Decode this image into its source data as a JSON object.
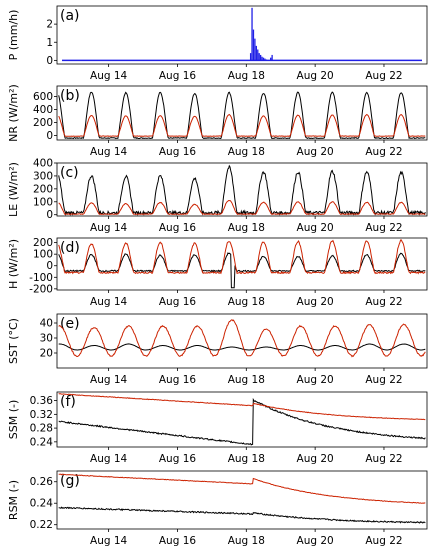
{
  "figure": {
    "x_tick_labels": [
      "Aug 14",
      "Aug 16",
      "Aug 18",
      "Aug 20",
      "Aug 22"
    ],
    "colors": {
      "black": "#000000",
      "red": "#cc2200",
      "blue": "#1f1fe6"
    }
  },
  "chart_data": [
    {
      "panel": "(a)",
      "type": "bar",
      "ylabel": "P (mm/h)",
      "xlim": [
        "2016-08-12T12:00",
        "2016-08-23T06:00"
      ],
      "ylim": [
        -0.2,
        3
      ],
      "yticks": [
        {
          "v": 0,
          "label": "0"
        },
        {
          "v": 1,
          "label": "1"
        },
        {
          "v": 2,
          "label": "2"
        }
      ],
      "series": [
        {
          "color": "blue",
          "x": [
            "2016-08-18T03:00",
            "2016-08-18T04:00",
            "2016-08-18T05:00",
            "2016-08-18T06:00",
            "2016-08-18T07:00",
            "2016-08-18T08:00",
            "2016-08-18T09:00",
            "2016-08-18T10:00",
            "2016-08-18T11:00",
            "2016-08-18T12:00",
            "2016-08-18T13:00",
            "2016-08-18T14:00",
            "2016-08-18T17:00",
            "2016-08-18T18:00"
          ],
          "y": [
            0.4,
            2.9,
            1.7,
            1.2,
            0.8,
            0.6,
            0.4,
            0.3,
            0.2,
            0.15,
            0.1,
            0.05,
            0.15,
            0.3
          ]
        }
      ],
      "baseline": 0
    },
    {
      "panel": "(b)",
      "type": "line",
      "ylabel": "NR (W/m²)",
      "model": "diurnal",
      "ylim": [
        -70,
        760
      ],
      "yticks": [
        {
          "v": 0,
          "label": "0"
        },
        {
          "v": 200,
          "label": "200"
        },
        {
          "v": 400,
          "label": "400"
        },
        {
          "v": 600,
          "label": "600"
        }
      ],
      "series": [
        {
          "color": "black",
          "peaks": [
            670,
            665,
            655,
            660,
            645,
            660,
            650,
            660,
            665,
            660,
            660
          ],
          "base": -40,
          "noise": 0.02
        },
        {
          "color": "red",
          "peaks": [
            320,
            305,
            300,
            305,
            295,
            320,
            300,
            310,
            315,
            320,
            320
          ],
          "base": -10,
          "noise": 0.02
        }
      ]
    },
    {
      "panel": "(c)",
      "type": "line",
      "ylabel": "LE (W/m²)",
      "model": "diurnal",
      "ylim": [
        -10,
        400
      ],
      "yticks": [
        {
          "v": 0,
          "label": "0"
        },
        {
          "v": 100,
          "label": "100"
        },
        {
          "v": 200,
          "label": "200"
        },
        {
          "v": 300,
          "label": "300"
        },
        {
          "v": 400,
          "label": "400"
        }
      ],
      "series": [
        {
          "color": "black",
          "peaks": [
            320,
            300,
            295,
            300,
            280,
            365,
            330,
            330,
            335,
            330,
            325
          ],
          "base": 15,
          "noise": 0.08
        },
        {
          "color": "red",
          "peaks": [
            100,
            90,
            85,
            95,
            80,
            110,
            95,
            100,
            100,
            95,
            95
          ],
          "base": 5,
          "noise": 0.06
        }
      ]
    },
    {
      "panel": "(d)",
      "type": "line",
      "ylabel": "H (W/m²)",
      "model": "diurnal",
      "ylim": [
        -210,
        240
      ],
      "yticks": [
        {
          "v": -200,
          "label": "-200"
        },
        {
          "v": -100,
          "label": "-100"
        },
        {
          "v": 0,
          "label": "0"
        },
        {
          "v": 100,
          "label": "100"
        },
        {
          "v": 200,
          "label": "200"
        }
      ],
      "series": [
        {
          "color": "black",
          "peaks": [
            110,
            95,
            100,
            90,
            95,
            110,
            80,
            80,
            85,
            95,
            105
          ],
          "base": -45,
          "noise": 0.08,
          "dip": {
            "day": 5.1,
            "value": -190
          }
        },
        {
          "color": "red",
          "peaks": [
            200,
            190,
            195,
            200,
            195,
            215,
            205,
            210,
            215,
            215,
            220
          ],
          "base": -60,
          "noise": 0.05
        }
      ]
    },
    {
      "panel": "(e)",
      "type": "line",
      "ylabel": "SST (°C)",
      "model": "diurnal_temp",
      "ylim": [
        10,
        46
      ],
      "yticks": [
        {
          "v": 20,
          "label": "20"
        },
        {
          "v": 30,
          "label": "30"
        },
        {
          "v": 40,
          "label": "40"
        }
      ],
      "series": [
        {
          "color": "black",
          "peaks": [
            26,
            25,
            26,
            25,
            25,
            24,
            24,
            25,
            25,
            26,
            26
          ],
          "base": 22,
          "noise": 0.02
        },
        {
          "color": "red",
          "peaks": [
            38,
            37,
            38,
            38,
            38,
            42,
            36,
            38,
            38,
            39,
            39
          ],
          "base": 18,
          "noise": 0.04
        }
      ]
    },
    {
      "panel": "(f)",
      "type": "line",
      "ylabel": "SSM (-)",
      "model": "drying",
      "ylim": [
        0.225,
        0.385
      ],
      "yticks": [
        {
          "v": 0.28,
          "label": "0.28"
        },
        {
          "v": 0.32,
          "label": "0.32"
        },
        {
          "v": 0.36,
          "label": "0.36"
        }
      ],
      "ytick_minor": [
        0.24
      ],
      "yticks_extra_label": {
        "v": 0.24,
        "label": "0.24"
      },
      "series": [
        {
          "color": "black",
          "start": 0.3,
          "preRain": 0.232,
          "jumpTo": 0.362,
          "end": 0.25,
          "noise": 0.004
        },
        {
          "color": "red",
          "start": 0.38,
          "preRain": 0.345,
          "jumpTo": 0.352,
          "end": 0.305,
          "noise": 0.0015
        }
      ]
    },
    {
      "panel": "(g)",
      "type": "line",
      "ylabel": "RSM (-)",
      "model": "drying",
      "ylim": [
        0.216,
        0.27
      ],
      "yticks": [
        {
          "v": 0.22,
          "label": "0.22"
        },
        {
          "v": 0.24,
          "label": "0.24"
        },
        {
          "v": 0.26,
          "label": "0.26"
        }
      ],
      "series": [
        {
          "color": "black",
          "start": 0.236,
          "preRain": 0.23,
          "jumpTo": 0.231,
          "end": 0.222,
          "noise": 0.0012
        },
        {
          "color": "red",
          "start": 0.267,
          "preRain": 0.258,
          "jumpTo": 0.263,
          "end": 0.24,
          "noise": 0.0005
        }
      ]
    }
  ]
}
